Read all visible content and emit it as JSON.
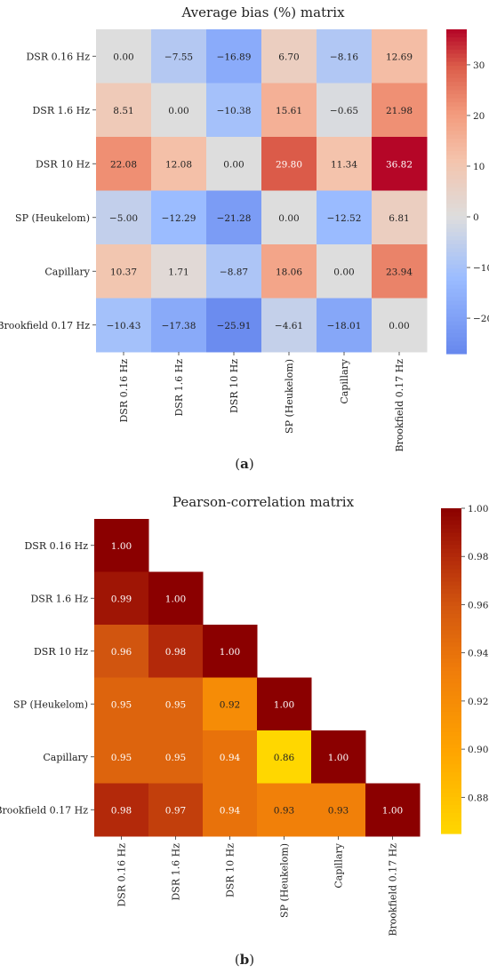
{
  "chart_data": [
    {
      "type": "heatmap",
      "title": "Average bias (%) matrix",
      "caption": {
        "letter": "a"
      },
      "rows": [
        "DSR 0.16 Hz",
        "DSR 1.6 Hz",
        "DSR 10 Hz",
        "SP (Heukelom)",
        "Capillary",
        "Brookfield 0.17 Hz"
      ],
      "columns": [
        "DSR 0.16 Hz",
        "DSR 1.6 Hz",
        "DSR 10 Hz",
        "SP (Heukelom)",
        "Capillary",
        "Brookfield 0.17 Hz"
      ],
      "values": [
        [
          0.0,
          -7.55,
          -16.89,
          6.7,
          -8.16,
          12.69
        ],
        [
          8.51,
          0.0,
          -10.38,
          15.61,
          -0.65,
          21.98
        ],
        [
          22.08,
          12.08,
          0.0,
          29.8,
          11.34,
          36.82
        ],
        [
          -5.0,
          -12.29,
          -21.28,
          0.0,
          -12.52,
          6.81
        ],
        [
          10.37,
          1.71,
          -8.87,
          18.06,
          0.0,
          23.94
        ],
        [
          -10.43,
          -17.38,
          -25.91,
          -4.61,
          -18.01,
          0.0
        ]
      ],
      "colormap": "coolwarm",
      "vmin": -27,
      "vmax": 37,
      "colorbar_ticks": [
        30,
        20,
        10,
        0,
        -10,
        -20
      ],
      "colorbar_tick_labels": [
        "30",
        "20",
        "10",
        "0",
        "−10",
        "−20"
      ],
      "triangle": "full",
      "colors": {
        "low": "#6788ee",
        "mid": "#dddddd",
        "high": "#b40426"
      }
    },
    {
      "type": "heatmap",
      "title": "Pearson-correlation matrix",
      "caption": {
        "letter": "b"
      },
      "rows": [
        "DSR 0.16 Hz",
        "DSR 1.6 Hz",
        "DSR 10 Hz",
        "SP (Heukelom)",
        "Capillary",
        "Brookfield 0.17 Hz"
      ],
      "columns": [
        "DSR 0.16 Hz",
        "DSR 1.6 Hz",
        "DSR 10 Hz",
        "SP (Heukelom)",
        "Capillary",
        "Brookfield 0.17 Hz"
      ],
      "values": [
        [
          1.0
        ],
        [
          0.99,
          1.0
        ],
        [
          0.96,
          0.98,
          1.0
        ],
        [
          0.95,
          0.95,
          0.92,
          1.0
        ],
        [
          0.95,
          0.95,
          0.94,
          0.86,
          1.0
        ],
        [
          0.98,
          0.97,
          0.94,
          0.93,
          0.93,
          1.0
        ]
      ],
      "colormap": "YlOrRd-like",
      "vmin": 0.865,
      "vmax": 1.0,
      "colorbar_ticks": [
        1.0,
        0.98,
        0.96,
        0.94,
        0.92,
        0.9,
        0.88
      ],
      "colorbar_tick_labels": [
        "1.00",
        "0.98",
        "0.96",
        "0.94",
        "0.92",
        "0.90",
        "0.88"
      ],
      "triangle": "lower",
      "colors": {
        "low": "#ffd700",
        "mid": "#ff8c00",
        "high": "#8b0000"
      }
    }
  ]
}
